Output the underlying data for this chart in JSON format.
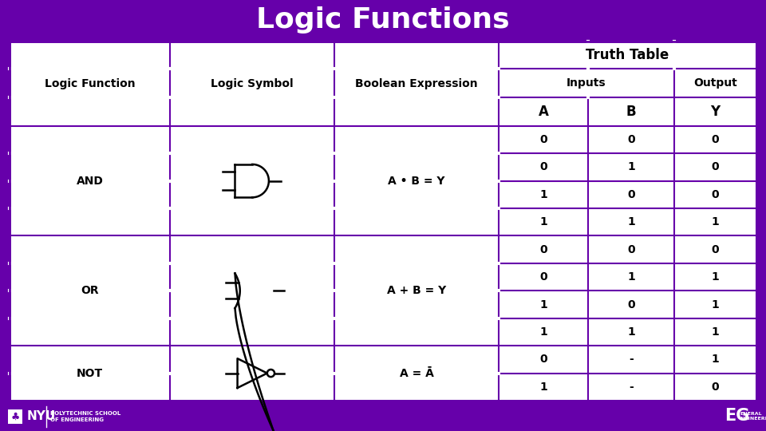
{
  "title": "Logic Functions",
  "title_bg": "#6600aa",
  "title_color": "#ffffff",
  "table_border_color": "#6600aa",
  "footer_bg": "#6600aa",
  "col_headers": [
    "Logic Function",
    "Logic Symbol",
    "Boolean Expression",
    "Inputs",
    "",
    "Output"
  ],
  "truth_table_header": "Truth Table",
  "sub_headers": [
    "A",
    "B",
    "Y"
  ],
  "and_rows": [
    [
      "0",
      "0",
      "0"
    ],
    [
      "0",
      "1",
      "0"
    ],
    [
      "1",
      "0",
      "0"
    ],
    [
      "1",
      "1",
      "1"
    ]
  ],
  "or_rows": [
    [
      "0",
      "0",
      "0"
    ],
    [
      "0",
      "1",
      "1"
    ],
    [
      "1",
      "0",
      "1"
    ],
    [
      "1",
      "1",
      "1"
    ]
  ],
  "not_rows": [
    [
      "0",
      "-",
      "1"
    ],
    [
      "1",
      "-",
      "0"
    ]
  ],
  "bool_and": "A • B = Y",
  "bool_or": "A + B = Y",
  "bool_not": "A = Ā",
  "purple": "#6600aa",
  "white": "#ffffff",
  "black": "#000000"
}
